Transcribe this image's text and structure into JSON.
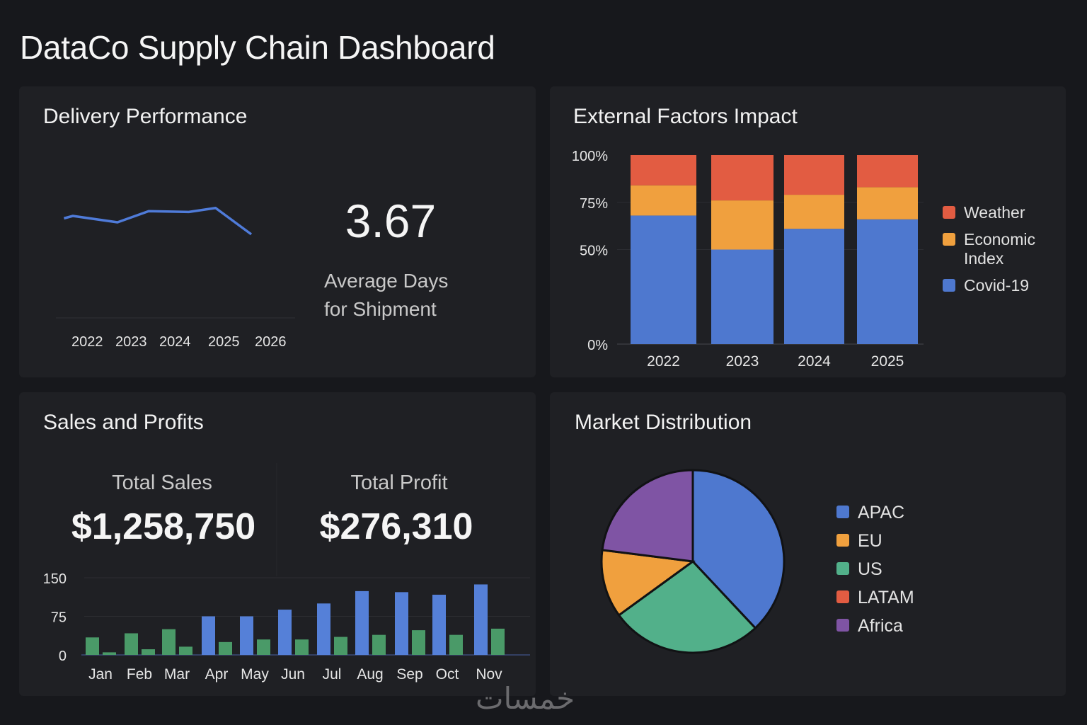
{
  "header": {
    "title": "DataCo Supply Chain Dashboard"
  },
  "delivery": {
    "title": "Delivery Performance",
    "kpi_value": "3.67",
    "kpi_label_line1": "Average Days",
    "kpi_label_line2": "for Shipment",
    "chart_data": {
      "type": "line",
      "title": "Delivery Performance",
      "x_ticks": [
        "2022",
        "2023",
        "2024",
        "2025",
        "2026"
      ],
      "x": [
        2021.8,
        2022.0,
        2023.0,
        2023.7,
        2024.6,
        2025.2,
        2026.0
      ],
      "values": [
        3.75,
        3.78,
        3.7,
        3.84,
        3.83,
        3.88,
        3.55
      ],
      "ylim": [
        2.5,
        4.5
      ],
      "color": "#4f7bd9",
      "grid": false
    }
  },
  "external": {
    "title": "External Factors Impact",
    "chart_data": {
      "type": "bar",
      "stacked": true,
      "title": "External Factors Impact",
      "categories": [
        "2022",
        "2023",
        "2024",
        "2025"
      ],
      "y_ticks": [
        "0%",
        "50%",
        "75%",
        "100%"
      ],
      "ylim": [
        0,
        100
      ],
      "series": [
        {
          "name": "Covid-19",
          "color": "#4e78cf",
          "values": [
            68,
            50,
            61,
            66
          ]
        },
        {
          "name": "Economic Index",
          "color": "#f0a03e",
          "values": [
            16,
            26,
            18,
            17
          ]
        },
        {
          "name": "Weather",
          "color": "#e25c42",
          "values": [
            16,
            24,
            21,
            17
          ]
        }
      ],
      "legend": [
        "Weather",
        "Economic Index",
        "Covid-19"
      ],
      "legend_position": "right"
    }
  },
  "sales": {
    "title": "Sales and Profits",
    "total_sales_label": "Total Sales",
    "total_sales_value": "$1,258,750",
    "total_profit_label": "Total Profit",
    "total_profit_value": "$276,310",
    "chart_data": {
      "type": "bar",
      "categories": [
        "Jan",
        "Feb",
        "Mar",
        "Apr",
        "May",
        "Jun",
        "Jul",
        "Aug",
        "Sep",
        "Oct",
        "Nov"
      ],
      "y_ticks": [
        "0",
        "75",
        "150"
      ],
      "ylim": [
        0,
        150
      ],
      "series": [
        {
          "name": "Sales",
          "values": [
            34,
            42,
            50,
            75,
            75,
            88,
            100,
            124,
            122,
            117,
            137
          ],
          "colors": [
            "#4a9a68",
            "#4a9a68",
            "#4a9a68",
            "#5580d8",
            "#5580d8",
            "#5580d8",
            "#5580d8",
            "#5580d8",
            "#5580d8",
            "#5580d8",
            "#5580d8"
          ]
        },
        {
          "name": "Profit",
          "color": "#4a9a68",
          "values": [
            5,
            11,
            16,
            25,
            30,
            30,
            35,
            39,
            48,
            39,
            51
          ]
        }
      ],
      "grid": true
    }
  },
  "market": {
    "title": "Market Distribution",
    "chart_data": {
      "type": "pie",
      "title": "Market Distribution",
      "slices": [
        {
          "label": "APAC",
          "value": 38,
          "color": "#4e78cf"
        },
        {
          "label": "US",
          "value": 27,
          "color": "#52b08a"
        },
        {
          "label": "EU",
          "value": 12,
          "color": "#f0a03e"
        },
        {
          "label": "Africa",
          "value": 23,
          "color": "#7f54a4"
        }
      ],
      "legend": [
        {
          "label": "APAC",
          "color": "#4e78cf"
        },
        {
          "label": "EU",
          "color": "#f0a03e"
        },
        {
          "label": "US",
          "color": "#52b08a"
        },
        {
          "label": "LATAM",
          "color": "#e25c42"
        },
        {
          "label": "Africa",
          "color": "#7f54a4"
        }
      ],
      "legend_position": "right"
    }
  },
  "watermark": "خمسات"
}
